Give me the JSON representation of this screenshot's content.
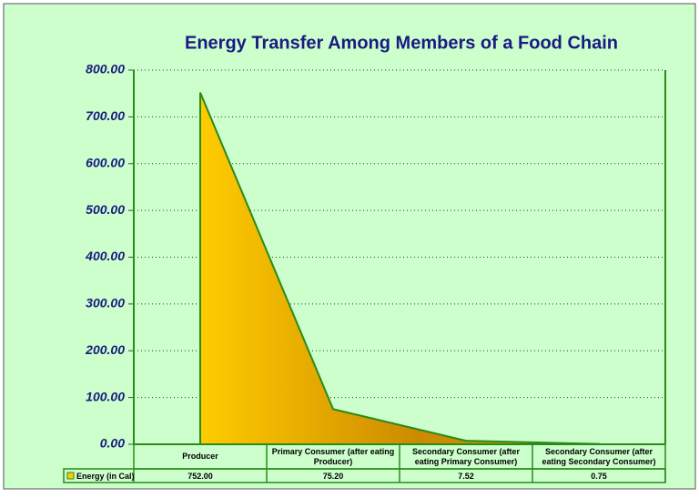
{
  "chart_data": {
    "type": "area",
    "title": "Energy Transfer Among Members of a Food Chain",
    "categories": [
      "Producer",
      "Primary Consumer (after eating Producer)",
      "Secondary Consumer (after eating Primary Consumer)",
      "Secondary Consumer (after eating Secondary Consumer)"
    ],
    "series": [
      {
        "name": "Energy (in Cal)",
        "color": "#ffcc00",
        "values": [
          752,
          75.2,
          7.52,
          0.75
        ],
        "value_labels": [
          "752.00",
          "75.20",
          "7.52",
          "0.75"
        ]
      }
    ],
    "ylim": [
      0,
      800
    ],
    "yticks": [
      {
        "value": 0,
        "label": "0.00"
      },
      {
        "value": 100,
        "label": "100.00"
      },
      {
        "value": 200,
        "label": "200.00"
      },
      {
        "value": 300,
        "label": "300.00"
      },
      {
        "value": 400,
        "label": "400.00"
      },
      {
        "value": 500,
        "label": "500.00"
      },
      {
        "value": 600,
        "label": "600.00"
      },
      {
        "value": 700,
        "label": "700.00"
      },
      {
        "value": 800,
        "label": "800.00"
      }
    ],
    "grid": true
  }
}
